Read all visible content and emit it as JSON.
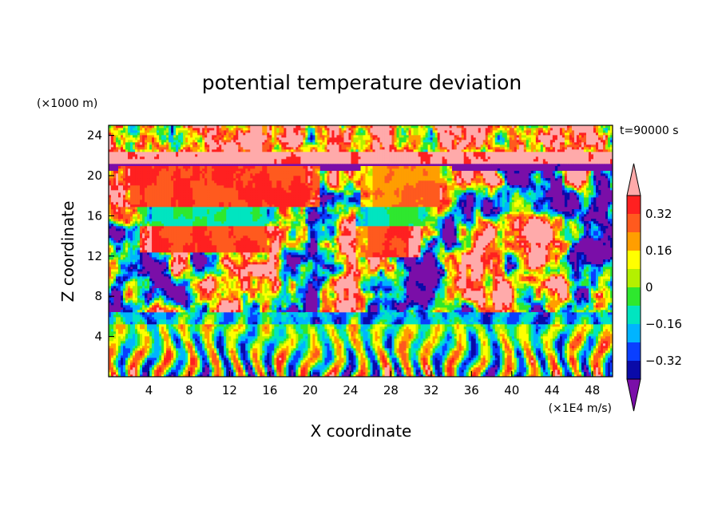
{
  "chart_data": {
    "type": "heatmap",
    "title": "potential temperature deviation",
    "xlabel": "X coordinate",
    "ylabel": "Z coordinate",
    "x_units": "(×1E4 m/s)",
    "y_units": "(×1000 m)",
    "time_label": "t=90000 s",
    "xlim": [
      0,
      50
    ],
    "ylim": [
      0,
      25
    ],
    "x_ticks": [
      "4",
      "8",
      "12",
      "16",
      "20",
      "24",
      "28",
      "32",
      "36",
      "40",
      "44",
      "48"
    ],
    "y_ticks": [
      "4",
      "8",
      "12",
      "16",
      "20",
      "24"
    ],
    "colorbar": {
      "labels": [
        "0.32",
        "0.16",
        "0",
        "−0.16",
        "−0.32"
      ],
      "levels": [
        -0.4,
        -0.32,
        -0.24,
        -0.16,
        -0.08,
        0,
        0.08,
        0.16,
        0.24,
        0.32,
        0.4
      ],
      "colors": [
        "#7a0ea8",
        "#0a0aa8",
        "#0a3fff",
        "#00b4ff",
        "#00e5c0",
        "#2ee82e",
        "#b4f000",
        "#ffff00",
        "#ff9e00",
        "#ff5a1e",
        "#ff2020",
        "#ffaaaa"
      ],
      "extend": "both"
    },
    "features": [
      {
        "region": "near-surface turbulent layer",
        "z_range": [
          0,
          6
        ],
        "pattern": "alternating positive and negative columns"
      },
      {
        "region": "warm anomaly layer",
        "z_range": [
          17,
          21
        ],
        "x_range": [
          1,
          21
        ],
        "value": 0.32
      },
      {
        "region": "cool anomaly band",
        "z_range": [
          15,
          17
        ],
        "x_range": [
          3,
          17
        ],
        "value": -0.08
      },
      {
        "region": "warm anomaly layer",
        "z_range": [
          12.5,
          15
        ],
        "x_range": [
          3,
          17
        ],
        "value": 0.32
      },
      {
        "region": "warm anomaly layer",
        "z_range": [
          17,
          21
        ],
        "x_range": [
          25,
          34
        ],
        "value": 0.24
      },
      {
        "region": "cool anomaly band",
        "z_range": [
          15,
          17
        ],
        "x_range": [
          24.5,
          32.5
        ],
        "value": -0.08
      },
      {
        "region": "warm anomaly layer",
        "z_range": [
          12,
          15
        ],
        "x_range": [
          24.5,
          31
        ],
        "value": 0.32
      },
      {
        "region": "upper mixed layer",
        "z_range": [
          21,
          25
        ],
        "pattern": "mostly positive with negative patches"
      }
    ]
  }
}
